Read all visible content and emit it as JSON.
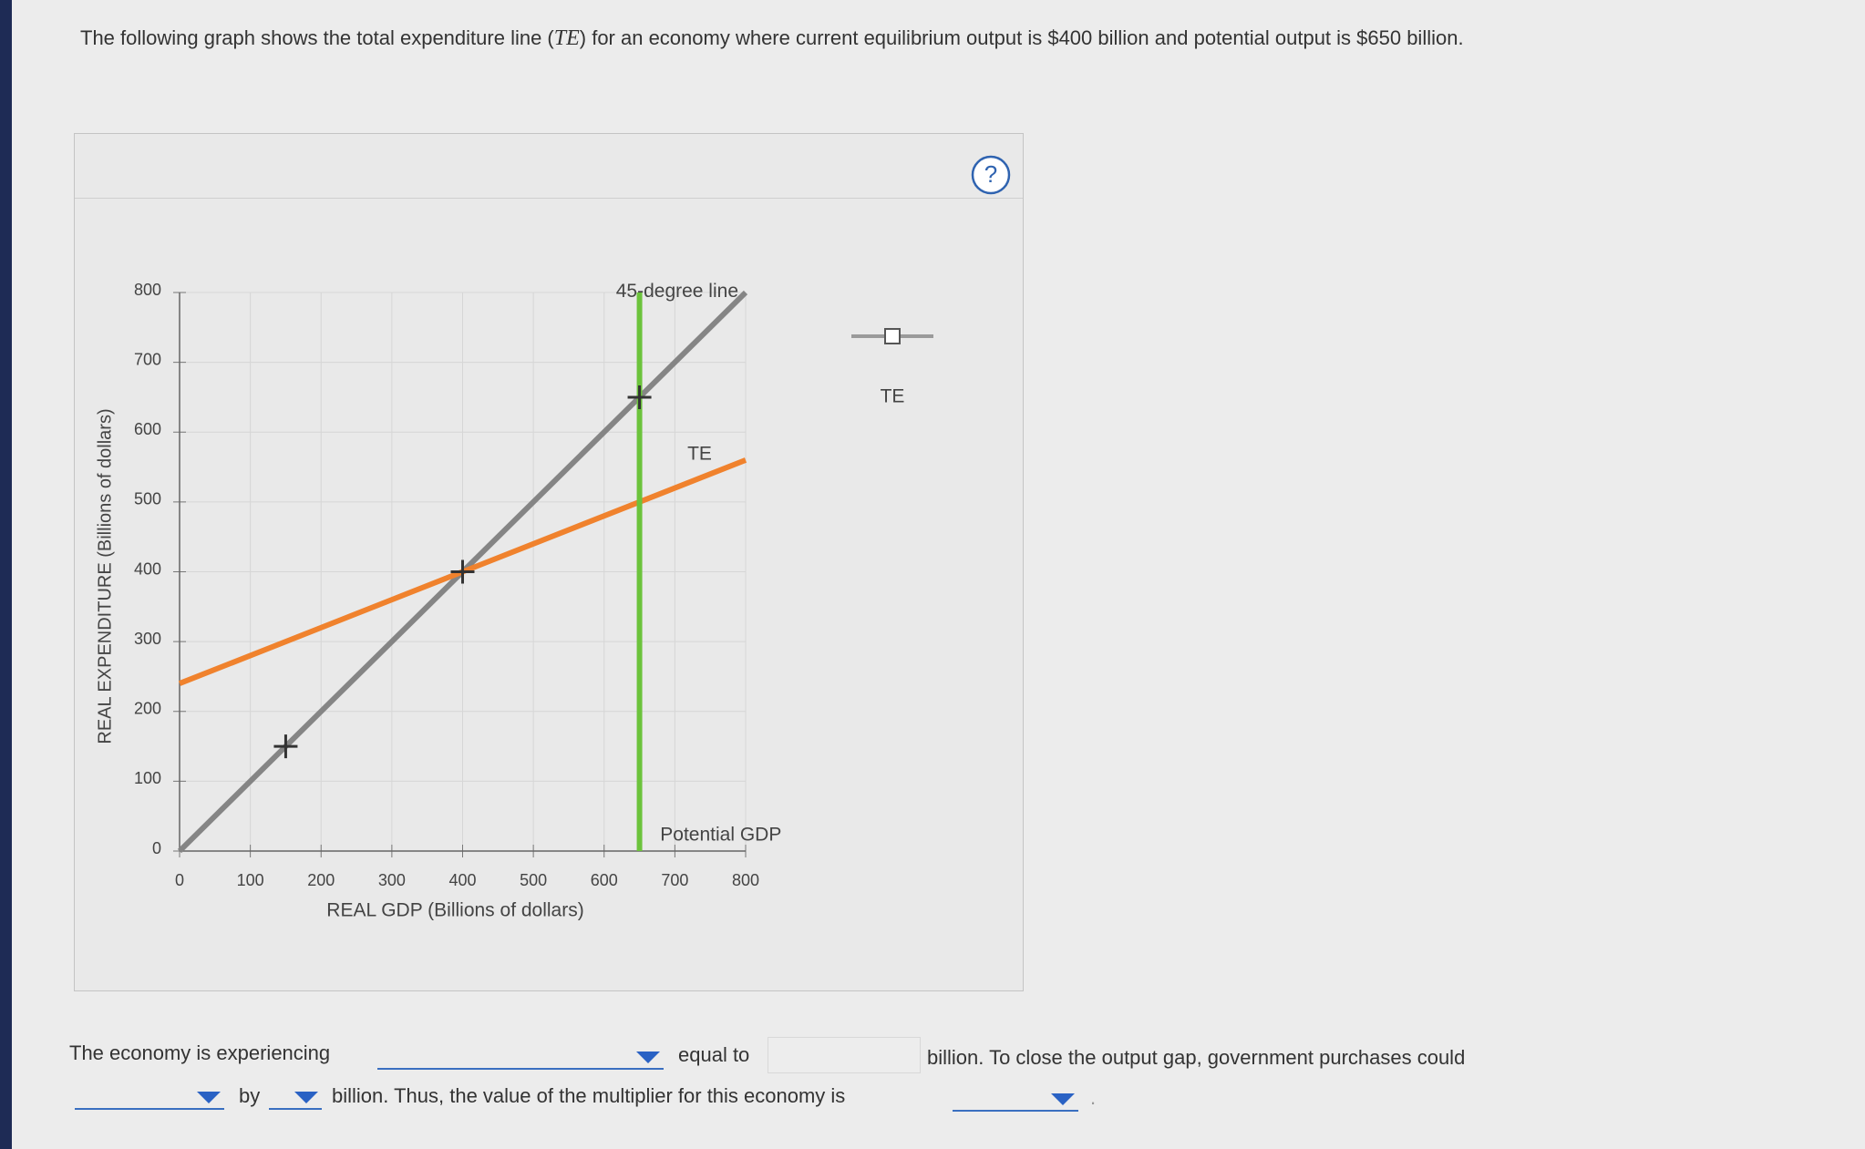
{
  "question": {
    "before": "The following graph shows the total expenditure line (",
    "symbol": "TE",
    "after": ") for an economy where current equilibrium output is $400 billion and potential output is $650 billion."
  },
  "chart_data": {
    "type": "line",
    "xlabel": "REAL GDP (Billions of dollars)",
    "ylabel": "REAL EXPENDITURE (Billions of dollars)",
    "xlim": [
      0,
      800
    ],
    "ylim": [
      0,
      800
    ],
    "xticks": [
      0,
      100,
      200,
      300,
      400,
      500,
      600,
      700,
      800
    ],
    "yticks": [
      0,
      100,
      200,
      300,
      400,
      500,
      600,
      700,
      800
    ],
    "grid": true,
    "series": [
      {
        "name": "45-degree line",
        "color": "#858585",
        "x": [
          0,
          800
        ],
        "values": [
          0,
          800
        ]
      },
      {
        "name": "TE",
        "color": "#f0822d",
        "x": [
          0,
          800
        ],
        "values": [
          240,
          560
        ]
      },
      {
        "name": "Potential GDP",
        "color": "#6cc33c",
        "x": [
          650,
          650
        ],
        "values": [
          0,
          800
        ]
      }
    ],
    "points": {
      "x": [
        150,
        400,
        650
      ],
      "values": [
        150,
        400,
        650
      ]
    }
  },
  "palette": [
    {
      "label": "TE"
    }
  ],
  "help": "?",
  "answer": {
    "t1": "The economy is experiencing",
    "t2": "equal to",
    "currency": "$",
    "t3": "billion. To close the output gap, government purchases could",
    "t4": "by",
    "t5": "billion. Thus, the value of the multiplier for this economy is",
    "t6": "."
  }
}
